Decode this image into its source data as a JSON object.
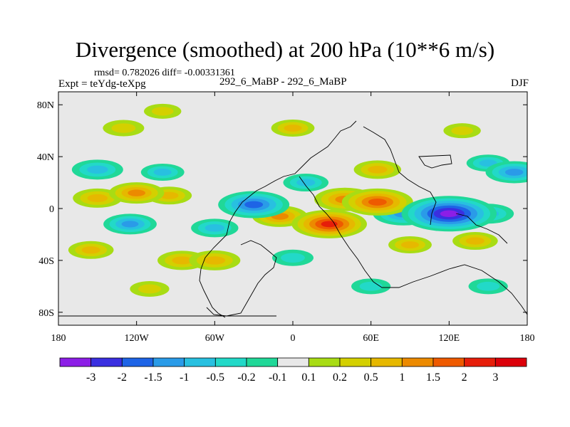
{
  "header": {
    "title": "Divergence (smoothed) at 200 hPa (10**6 m/s)",
    "stats": "rmsd= 0.782026 diff= -0.00331361",
    "experiment": "Expt = teYdg-teXpg",
    "center_label": "292_6_MaBP - 292_6_MaBP",
    "season": "DJF"
  },
  "chart_data": {
    "type": "heatmap",
    "title": "Divergence (smoothed) at 200 hPa (10**6 m/s)",
    "subtitle": "292_6_MaBP - 292_6_MaBP",
    "xlabel": "",
    "ylabel": "",
    "x_ticks": [
      "180",
      "120W",
      "60W",
      "0",
      "60E",
      "120E",
      "180"
    ],
    "x_tick_values": [
      -180,
      -120,
      -60,
      0,
      60,
      120,
      180
    ],
    "y_ticks": [
      "80N",
      "40N",
      "0",
      "40S",
      "80S"
    ],
    "y_tick_values": [
      80,
      40,
      0,
      -40,
      -80
    ],
    "xlim": [
      -180,
      180
    ],
    "ylim": [
      -90,
      90
    ],
    "colorbar": {
      "levels": [
        "-3",
        "-2",
        "-1.5",
        "-1",
        "-0.5",
        "-0.2",
        "-0.1",
        "0.1",
        "0.2",
        "0.5",
        "1",
        "1.5",
        "2",
        "3"
      ],
      "colors": [
        "#8c1ee6",
        "#3a2fe0",
        "#1e64e6",
        "#2a9be8",
        "#28c0e0",
        "#22d9c8",
        "#20d898",
        "#e8e8e8",
        "#a8dc14",
        "#d4d000",
        "#e6b800",
        "#ec8a00",
        "#ee5a00",
        "#e61e0a",
        "#dc000a"
      ]
    },
    "features": [
      {
        "lon": -120,
        "lat": 12,
        "value": 1.2
      },
      {
        "lon": -150,
        "lat": 8,
        "value": 0.9
      },
      {
        "lon": -95,
        "lat": 10,
        "value": 0.7
      },
      {
        "lon": -30,
        "lat": 3,
        "value": -2.0
      },
      {
        "lon": 65,
        "lat": 5,
        "value": 2.0
      },
      {
        "lon": 40,
        "lat": 7,
        "value": 1.5
      },
      {
        "lon": 28,
        "lat": -12,
        "value": 2.2
      },
      {
        "lon": 120,
        "lat": -4,
        "value": -3.2
      },
      {
        "lon": 85,
        "lat": -4,
        "value": -1.5
      },
      {
        "lon": 150,
        "lat": -4,
        "value": -1.0
      },
      {
        "lon": -10,
        "lat": -6,
        "value": 1.2
      },
      {
        "lon": -150,
        "lat": 30,
        "value": -1.0
      },
      {
        "lon": -100,
        "lat": 28,
        "value": -0.6
      },
      {
        "lon": 10,
        "lat": 20,
        "value": -0.7
      },
      {
        "lon": 170,
        "lat": 28,
        "value": -1.3
      },
      {
        "lon": 150,
        "lat": 35,
        "value": -0.6
      },
      {
        "lon": 65,
        "lat": 30,
        "value": 0.8
      },
      {
        "lon": -125,
        "lat": -12,
        "value": -1.1
      },
      {
        "lon": -60,
        "lat": -15,
        "value": -0.8
      },
      {
        "lon": 0,
        "lat": -38,
        "value": -0.5
      },
      {
        "lon": -85,
        "lat": -40,
        "value": 0.9
      },
      {
        "lon": -155,
        "lat": -32,
        "value": 0.7
      },
      {
        "lon": -60,
        "lat": -40,
        "value": 1.0
      },
      {
        "lon": 90,
        "lat": -28,
        "value": 0.6
      },
      {
        "lon": 140,
        "lat": -25,
        "value": 0.7
      },
      {
        "lon": 0,
        "lat": 62,
        "value": 0.6
      },
      {
        "lon": -130,
        "lat": 62,
        "value": 0.5
      },
      {
        "lon": 130,
        "lat": 60,
        "value": 0.3
      },
      {
        "lon": -100,
        "lat": 75,
        "value": 0.3
      },
      {
        "lon": 60,
        "lat": -60,
        "value": -0.4
      },
      {
        "lon": -110,
        "lat": -62,
        "value": 0.4
      },
      {
        "lon": 150,
        "lat": -60,
        "value": -0.4
      }
    ]
  }
}
